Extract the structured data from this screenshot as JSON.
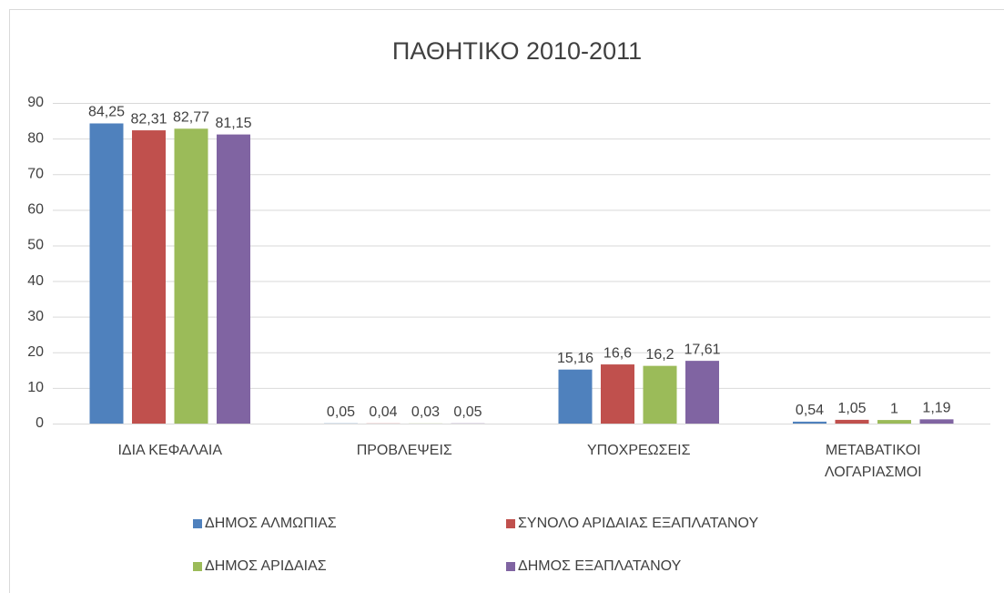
{
  "chart_data": {
    "type": "bar",
    "title": "ΠΑΘΗΤΙΚΟ 2010-2011",
    "categories": [
      "ΙΔΙΑ ΚΕΦΑΛΑΙΑ",
      "ΠΡΟΒΛΕΨΕΙΣ",
      "ΥΠΟΧΡΕΩΣΕΙΣ",
      "ΜΕΤΑΒΑΤΙΚΟΙ ΛΟΓΑΡΙΑΣΜΟΙ"
    ],
    "series": [
      {
        "name": "ΔΗΜΟΣ ΑΛΜΩΠΙΑΣ",
        "color": "#4f81bd",
        "values": [
          84.25,
          0.05,
          15.16,
          0.54
        ],
        "value_labels": [
          "84,25",
          "0,05",
          "15,16",
          "0,54"
        ]
      },
      {
        "name": "ΣΥΝΟΛΟ ΑΡΙΔΑΙΑΣ ΕΞΑΠΛΑΤΑΝΟΥ",
        "color": "#c0504d",
        "values": [
          82.31,
          0.04,
          16.6,
          1.05
        ],
        "value_labels": [
          "82,31",
          "0,04",
          "16,6",
          "1,05"
        ]
      },
      {
        "name": "ΔΗΜΟΣ ΑΡΙΔΑΙΑΣ",
        "color": "#9bbb59",
        "values": [
          82.77,
          0.03,
          16.2,
          1
        ],
        "value_labels": [
          "82,77",
          "0,03",
          "16,2",
          "1"
        ]
      },
      {
        "name": "ΔΗΜΟΣ ΕΞΑΠΛΑΤΑΝΟΥ",
        "color": "#8064a2",
        "values": [
          81.15,
          0.05,
          17.61,
          1.19
        ],
        "value_labels": [
          "81,15",
          "0,05",
          "17,61",
          "1,19"
        ]
      }
    ],
    "ylim": [
      0,
      90
    ],
    "yticks": [
      0,
      10,
      20,
      30,
      40,
      50,
      60,
      70,
      80,
      90
    ],
    "grid": true,
    "legend": "bottom"
  }
}
